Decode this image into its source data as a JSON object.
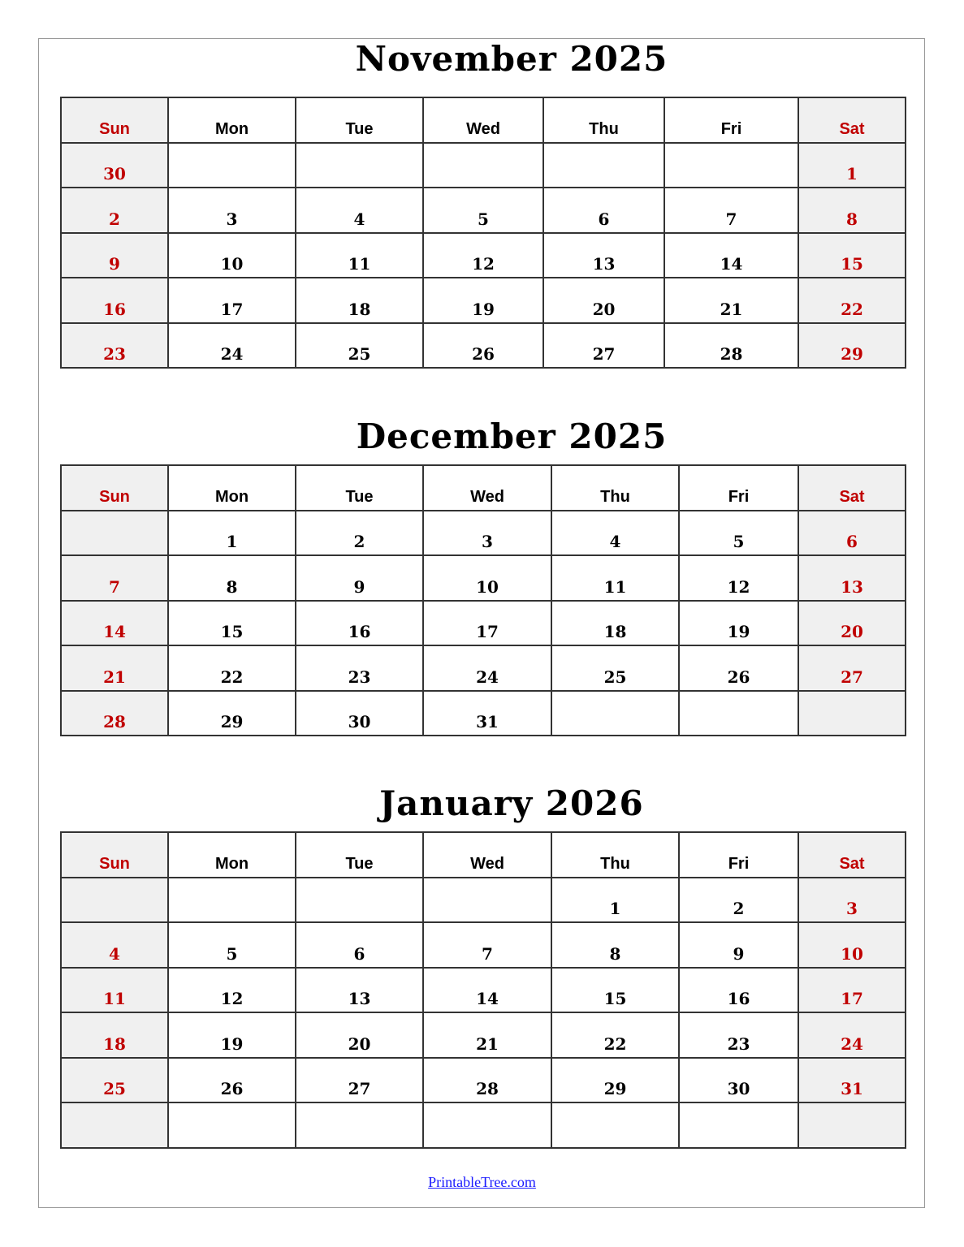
{
  "weekdays": [
    "Sun",
    "Mon",
    "Tue",
    "Wed",
    "Thu",
    "Fri",
    "Sat"
  ],
  "colors": {
    "weekend_text": "#c00000",
    "weekend_bg": "#f0f0f0",
    "link": "#1a1aff"
  },
  "months": [
    {
      "title": "November 2025",
      "weeks": [
        [
          "30",
          "",
          "",
          "",
          "",
          "",
          "1"
        ],
        [
          "2",
          "3",
          "4",
          "5",
          "6",
          "7",
          "8"
        ],
        [
          "9",
          "10",
          "11",
          "12",
          "13",
          "14",
          "15"
        ],
        [
          "16",
          "17",
          "18",
          "19",
          "20",
          "21",
          "22"
        ],
        [
          "23",
          "24",
          "25",
          "26",
          "27",
          "28",
          "29"
        ]
      ]
    },
    {
      "title": "December 2025",
      "weeks": [
        [
          "",
          "1",
          "2",
          "3",
          "4",
          "5",
          "6"
        ],
        [
          "7",
          "8",
          "9",
          "10",
          "11",
          "12",
          "13"
        ],
        [
          "14",
          "15",
          "16",
          "17",
          "18",
          "19",
          "20"
        ],
        [
          "21",
          "22",
          "23",
          "24",
          "25",
          "26",
          "27"
        ],
        [
          "28",
          "29",
          "30",
          "31",
          "",
          "",
          ""
        ]
      ]
    },
    {
      "title": "January 2026",
      "weeks": [
        [
          "",
          "",
          "",
          "",
          "1",
          "2",
          "3"
        ],
        [
          "4",
          "5",
          "6",
          "7",
          "8",
          "9",
          "10"
        ],
        [
          "11",
          "12",
          "13",
          "14",
          "15",
          "16",
          "17"
        ],
        [
          "18",
          "19",
          "20",
          "21",
          "22",
          "23",
          "24"
        ],
        [
          "25",
          "26",
          "27",
          "28",
          "29",
          "30",
          "31"
        ],
        [
          "",
          "",
          "",
          "",
          "",
          "",
          ""
        ]
      ]
    }
  ],
  "footer": {
    "link_text": "PrintableTree.com"
  }
}
